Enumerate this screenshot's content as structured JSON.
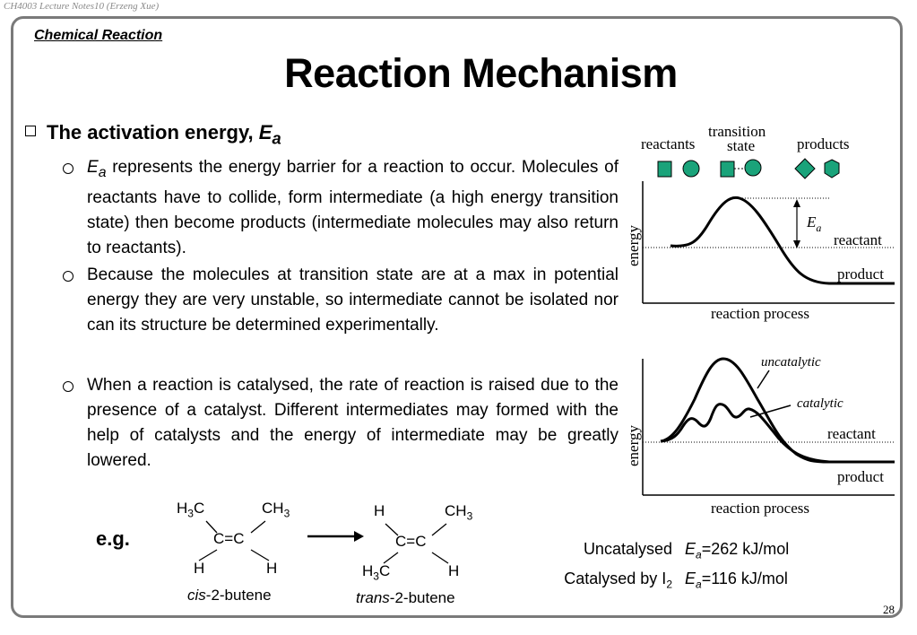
{
  "header_note": "CH4003 Lecture Notes10 (Erzeng Xue)",
  "section_label": "Chemical Reaction",
  "title": "Reaction Mechanism",
  "main_bullet": {
    "text": "The activation energy, ",
    "symbol": "E",
    "subscript": "a"
  },
  "sub_bullets": [
    {
      "lead_symbol": "E",
      "lead_subscript": "a",
      "text": " represents the energy barrier for a reaction to occur. Molecules of reactants have to collide, form intermediate (a high energy transition state) then become products (intermediate molecules may also return to reactants)."
    },
    {
      "text": "Because the molecules at transition state are at a max in potential energy they are very unstable, so intermediate cannot be isolated nor can its structure be determined experimentally."
    },
    {
      "text": "When a reaction is catalysed, the rate of reaction is raised due to the presence of a catalyst. Different intermediates may formed with the help of catalysts and the energy of intermediate may be greatly lowered."
    }
  ],
  "diagram_top": {
    "reactants_label": "reactants",
    "transition_label_1": "transition",
    "transition_label_2": "state",
    "products_label": "products",
    "ea_symbol": "E",
    "ea_subscript": "a",
    "reactant_label": "reactant",
    "product_label": "product",
    "y_label": "energy",
    "x_label": "reaction process",
    "shape_color": "#1aa37a"
  },
  "diagram_bottom": {
    "uncatalytic_label": "uncatalytic",
    "catalytic_label": "catalytic",
    "reactant_label": "reactant",
    "product_label": "product",
    "y_label": "energy",
    "x_label": "reaction process"
  },
  "example": {
    "label": "e.g.",
    "cis": {
      "top_left": "H",
      "top_left_sub": "3",
      "top_left_tail": "C",
      "top_right": "CH",
      "top_right_sub": "3",
      "center": "C=C",
      "bottom_left": "H",
      "bottom_right": "H",
      "name_italic": "cis",
      "name_rest": "-2-butene"
    },
    "trans": {
      "top_left": "H",
      "top_right": "CH",
      "top_right_sub": "3",
      "center": "C=C",
      "bottom_left": "H",
      "bottom_left_sub": "3",
      "bottom_left_tail": "C",
      "bottom_right": "H",
      "name_italic": "trans",
      "name_rest": "-2-butene"
    }
  },
  "energies": [
    {
      "label": "Uncatalysed",
      "label_sub": "",
      "symbol": "E",
      "subscript": "a",
      "value": "=262 kJ/mol"
    },
    {
      "label": "Catalysed by I",
      "label_sub": "2",
      "symbol": "E",
      "subscript": "a",
      "value": "=116 kJ/mol"
    }
  ],
  "page_number": "28"
}
